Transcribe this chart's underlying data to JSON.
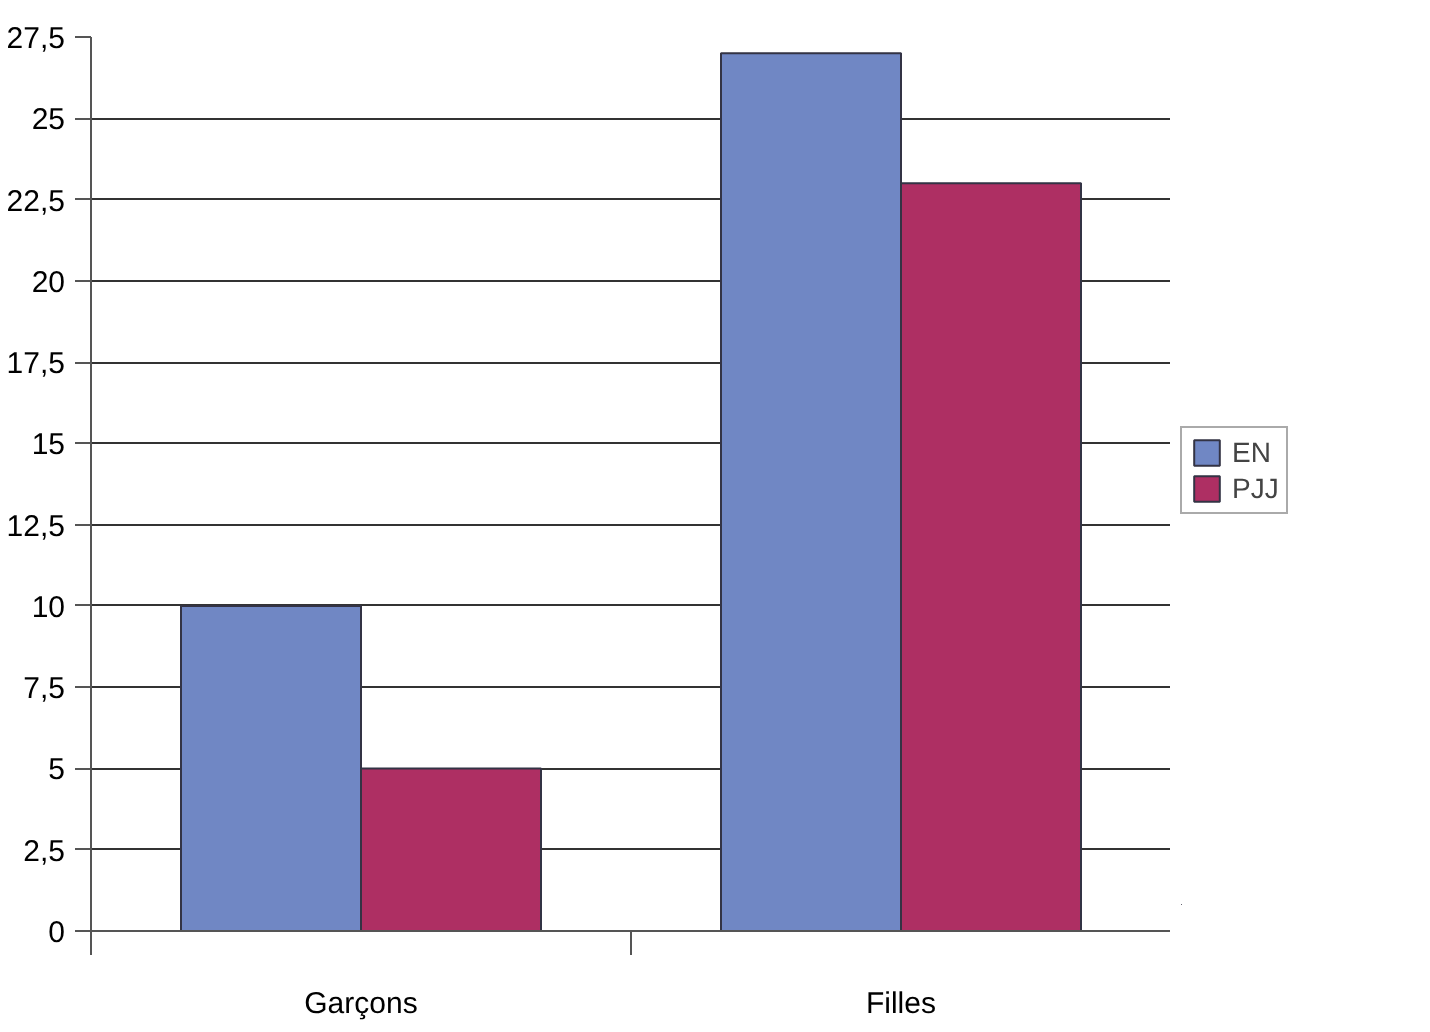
{
  "chart_data": {
    "type": "bar",
    "categories": [
      "Garçons",
      "Filles"
    ],
    "series": [
      {
        "name": "EN",
        "color": "#7087c4",
        "values": [
          10,
          27
        ]
      },
      {
        "name": "PJJ",
        "color": "#ae2f63",
        "values": [
          5,
          23
        ]
      }
    ],
    "ylim": [
      0,
      27.5
    ],
    "yticks": [
      0,
      {
        "value": 2.5,
        "label": "2,5"
      },
      5,
      {
        "value": 7.5,
        "label": "7,5"
      },
      10,
      {
        "value": 12.5,
        "label": "12,5"
      },
      15,
      {
        "value": 17.5,
        "label": "17,5"
      },
      20,
      {
        "value": 22.5,
        "label": "22,5"
      },
      25,
      {
        "value": 27.5,
        "label": "27,5"
      }
    ],
    "grid": "y",
    "legend": "right"
  }
}
